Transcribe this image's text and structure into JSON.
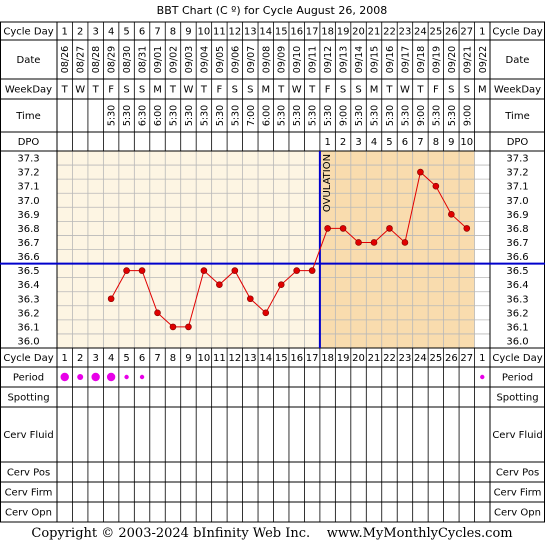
{
  "title": "BBT Chart (C º) for Cycle August 26, 2008",
  "row_labels": {
    "cycle_day": "Cycle Day",
    "date": "Date",
    "weekday": "WeekDay",
    "time": "Time",
    "dpo": "DPO",
    "period": "Period",
    "spotting": "Spotting",
    "cerv_fluid": "Cerv Fluid",
    "cerv_pos": "Cerv Pos",
    "cerv_firm": "Cerv Firm",
    "cerv_opn": "Cerv Opn"
  },
  "footer": "Copyright © 2003-2024 bInfinity Web Inc.    www.MyMonthlyCycles.com",
  "colors": {
    "line": "#e00000",
    "marker_fill": "#e00000",
    "coverline": "#0000cc",
    "ovulation_line": "#0000cc",
    "pre_ovulation_bg": "#fdf5e3",
    "post_ovulation_bg": "#f9dcae",
    "period_dot": "#e800e8",
    "grid": "#b8b8b8"
  },
  "chart_data": {
    "type": "line",
    "title": "BBT Chart (C º) for Cycle August 26, 2008",
    "cycle_days": [
      1,
      2,
      3,
      4,
      5,
      6,
      7,
      8,
      9,
      10,
      11,
      12,
      13,
      14,
      15,
      16,
      17,
      18,
      19,
      20,
      21,
      22,
      23,
      24,
      25,
      26,
      27,
      1
    ],
    "dates": [
      "08/26",
      "08/27",
      "08/28",
      "08/29",
      "08/30",
      "08/31",
      "09/01",
      "09/02",
      "09/03",
      "09/04",
      "09/05",
      "09/06",
      "09/07",
      "09/08",
      "09/09",
      "09/10",
      "09/11",
      "09/12",
      "09/13",
      "09/14",
      "09/15",
      "09/16",
      "09/17",
      "09/18",
      "09/19",
      "09/20",
      "09/21",
      "09/22"
    ],
    "weekdays": [
      "T",
      "W",
      "T",
      "F",
      "S",
      "S",
      "M",
      "T",
      "W",
      "T",
      "F",
      "S",
      "S",
      "M",
      "T",
      "W",
      "T",
      "F",
      "S",
      "S",
      "M",
      "T",
      "W",
      "T",
      "F",
      "S",
      "S",
      "M"
    ],
    "times": [
      "",
      "",
      "",
      "5:30",
      "5:30",
      "6:30",
      "6:00",
      "5:30",
      "5:30",
      "5:30",
      "5:30",
      "5:30",
      "7:00",
      "6:00",
      "5:30",
      "5:30",
      "5:30",
      "5:30",
      "9:00",
      "5:30",
      "5:30",
      "5:30",
      "5:30",
      "9:00",
      "5:30",
      "5:30",
      "9:00",
      ""
    ],
    "dpo": [
      "",
      "",
      "",
      "",
      "",
      "",
      "",
      "",
      "",
      "",
      "",
      "",
      "",
      "",
      "",
      "",
      "",
      "1",
      "2",
      "3",
      "4",
      "5",
      "6",
      "7",
      "8",
      "9",
      "10",
      ""
    ],
    "temperatures": [
      null,
      null,
      null,
      36.3,
      36.5,
      36.5,
      36.2,
      36.1,
      36.1,
      36.5,
      36.4,
      36.5,
      36.3,
      36.2,
      36.4,
      36.5,
      36.5,
      36.8,
      36.8,
      36.7,
      36.7,
      36.8,
      36.7,
      37.2,
      37.1,
      36.9,
      36.8,
      null
    ],
    "y_ticks": [
      "37.3",
      "37.2",
      "37.1",
      "37.0",
      "36.9",
      "36.8",
      "36.7",
      "36.6",
      "36.5",
      "36.4",
      "36.3",
      "36.2",
      "36.1",
      "36.0"
    ],
    "ylim": [
      36.0,
      37.3
    ],
    "coverline": 36.55,
    "ovulation_day": 17,
    "ovulation_label": "OVULATION",
    "period": [
      3,
      2,
      3,
      3,
      1,
      1,
      0,
      0,
      0,
      0,
      0,
      0,
      0,
      0,
      0,
      0,
      0,
      0,
      0,
      0,
      0,
      0,
      0,
      0,
      0,
      0,
      0,
      1
    ],
    "grid": true
  }
}
